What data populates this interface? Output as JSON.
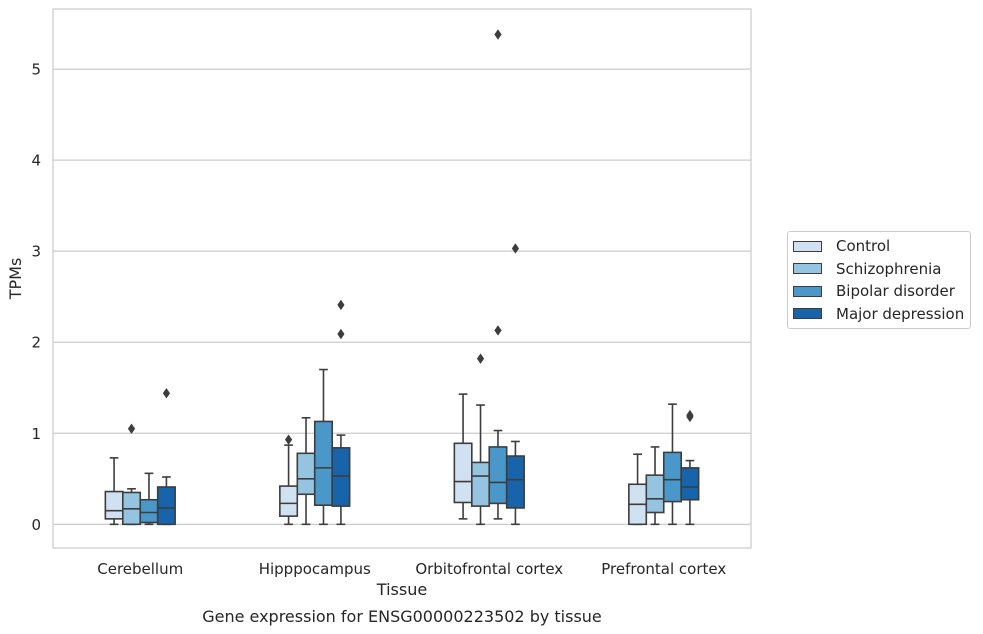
{
  "chart_data": {
    "type": "box",
    "title": "",
    "caption": "Gene expression for ENSG00000223502 by tissue",
    "xlabel": "Tissue",
    "ylabel": "TPMs",
    "ylim": [
      -0.26,
      5.66
    ],
    "yticks": [
      "0",
      "1",
      "2",
      "3",
      "4",
      "5"
    ],
    "grid": "horizontal",
    "legend_position": "right",
    "categories": [
      "Cerebellum",
      "Hipppocampus",
      "Orbitofrontal cortex",
      "Prefrontal cortex"
    ],
    "series": [
      {
        "name": "Control",
        "color": "#d0e1f2",
        "boxes": [
          {
            "whislo": 0.0,
            "q1": 0.06,
            "med": 0.15,
            "q3": 0.36,
            "whishi": 0.73,
            "fliers": []
          },
          {
            "whislo": 0.0,
            "q1": 0.09,
            "med": 0.23,
            "q3": 0.42,
            "whishi": 0.87,
            "fliers": [
              0.93
            ]
          },
          {
            "whislo": 0.06,
            "q1": 0.24,
            "med": 0.47,
            "q3": 0.89,
            "whishi": 1.43,
            "fliers": []
          },
          {
            "whislo": 0.0,
            "q1": 0.0,
            "med": 0.22,
            "q3": 0.44,
            "whishi": 0.77,
            "fliers": []
          }
        ]
      },
      {
        "name": "Schizophrenia",
        "color": "#94c4df",
        "boxes": [
          {
            "whislo": 0.0,
            "q1": 0.0,
            "med": 0.17,
            "q3": 0.35,
            "whishi": 0.39,
            "fliers": [
              1.05
            ]
          },
          {
            "whislo": 0.0,
            "q1": 0.33,
            "med": 0.5,
            "q3": 0.78,
            "whishi": 1.17,
            "fliers": []
          },
          {
            "whislo": 0.0,
            "q1": 0.2,
            "med": 0.53,
            "q3": 0.68,
            "whishi": 1.31,
            "fliers": [
              1.82
            ]
          },
          {
            "whislo": 0.0,
            "q1": 0.13,
            "med": 0.28,
            "q3": 0.54,
            "whishi": 0.85,
            "fliers": []
          }
        ]
      },
      {
        "name": "Bipolar disorder",
        "color": "#4a98c9",
        "boxes": [
          {
            "whislo": 0.0,
            "q1": 0.02,
            "med": 0.13,
            "q3": 0.27,
            "whishi": 0.56,
            "fliers": []
          },
          {
            "whislo": 0.0,
            "q1": 0.21,
            "med": 0.62,
            "q3": 1.13,
            "whishi": 1.7,
            "fliers": []
          },
          {
            "whislo": 0.06,
            "q1": 0.23,
            "med": 0.46,
            "q3": 0.85,
            "whishi": 1.03,
            "fliers": [
              2.13,
              5.38
            ]
          },
          {
            "whislo": 0.0,
            "q1": 0.25,
            "med": 0.49,
            "q3": 0.79,
            "whishi": 1.32,
            "fliers": []
          }
        ]
      },
      {
        "name": "Major depression",
        "color": "#1764ab",
        "boxes": [
          {
            "whislo": 0.0,
            "q1": 0.0,
            "med": 0.18,
            "q3": 0.41,
            "whishi": 0.52,
            "fliers": [
              1.44
            ]
          },
          {
            "whislo": 0.0,
            "q1": 0.2,
            "med": 0.53,
            "q3": 0.84,
            "whishi": 0.98,
            "fliers": [
              2.09,
              2.41
            ]
          },
          {
            "whislo": 0.0,
            "q1": 0.18,
            "med": 0.49,
            "q3": 0.75,
            "whishi": 0.91,
            "fliers": [
              3.03
            ]
          },
          {
            "whislo": 0.0,
            "q1": 0.27,
            "med": 0.41,
            "q3": 0.62,
            "whishi": 0.7,
            "fliers": [
              1.18,
              1.2
            ]
          }
        ]
      }
    ]
  }
}
